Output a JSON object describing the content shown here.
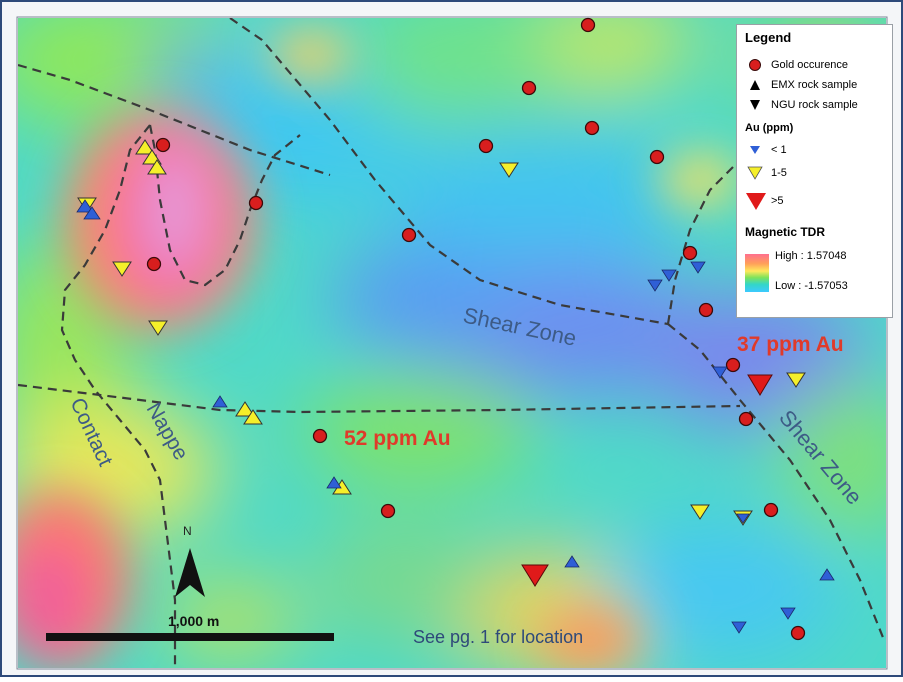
{
  "legend": {
    "title": "Legend",
    "items": [
      {
        "label": "Gold occurence",
        "symbol": "red-circle"
      },
      {
        "label": "EMX rock sample",
        "symbol": "black-triangle-up"
      },
      {
        "label": "NGU rock sample",
        "symbol": "black-triangle-down"
      }
    ],
    "au_title": "Au (ppm)",
    "au_items": [
      {
        "label": "< 1",
        "color": "#2f5fd6"
      },
      {
        "label": "1-5",
        "color": "#f5ef2a"
      },
      {
        "label": ">5",
        "color": "#e01a1a"
      }
    ],
    "tdr_title": "Magnetic TDR",
    "tdr_high": "High : 1.57048",
    "tdr_low": "Low : -1.57053"
  },
  "map_labels": {
    "shear_zone_1": "Shear Zone",
    "shear_zone_2": "Shear Zone",
    "contact": "Contact",
    "nappe": "Nappe",
    "au_37": "37 ppm Au",
    "au_52": "52 ppm Au",
    "note": "See pg. 1 for location"
  },
  "north_arrow": {
    "label": "N"
  },
  "scale_bar": {
    "label": "1,000 m"
  },
  "colors": {
    "gold_occurrence": "#d81e1e",
    "label_red": "#e03a2a",
    "label_blue": "#3d5b86",
    "frame_border": "#2e4a7a"
  }
}
